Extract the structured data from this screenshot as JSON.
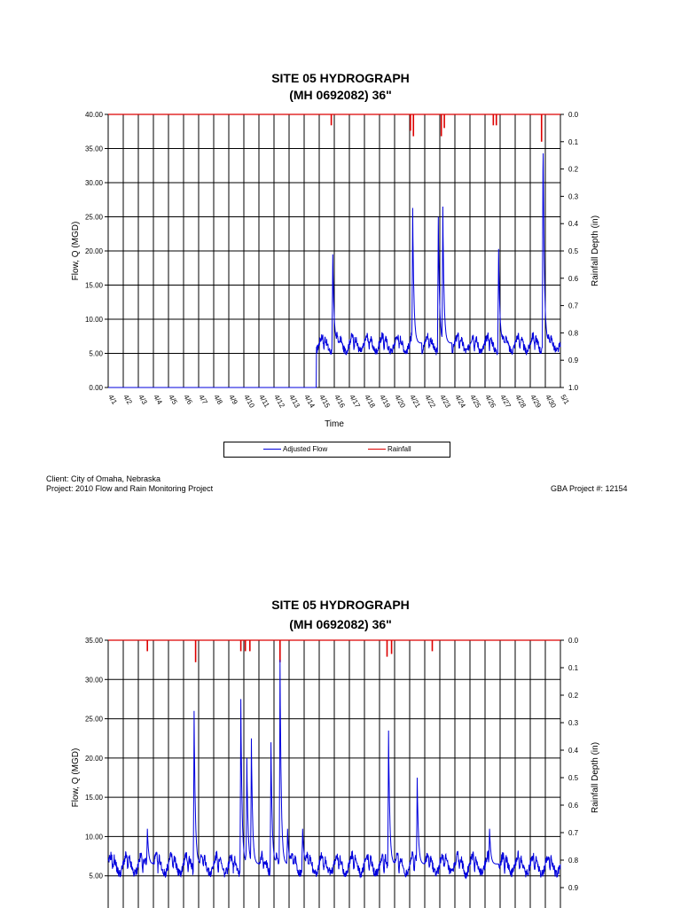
{
  "chart_data": [
    {
      "type": "line",
      "title_line1": "SITE 05 HYDROGRAPH",
      "title_line2": "(MH 0692082) 36\"",
      "xlabel": "Time",
      "ylabel": "Flow, Q (MGD)",
      "y2label": "Rainfall Depth (in)",
      "ylim": [
        0,
        40
      ],
      "y_ticks": [
        "40.00",
        "35.00",
        "30.00",
        "25.00",
        "20.00",
        "15.00",
        "10.00",
        "5.00",
        "0.00"
      ],
      "y2lim": [
        1.0,
        0.0
      ],
      "y2_ticks": [
        "0.0",
        "0.1",
        "0.2",
        "0.3",
        "0.4",
        "0.5",
        "0.6",
        "0.7",
        "0.8",
        "0.9",
        "1.0"
      ],
      "x_ticks": [
        "4/1",
        "4/2",
        "4/3",
        "4/4",
        "4/5",
        "4/6",
        "4/7",
        "4/8",
        "4/9",
        "4/10",
        "4/11",
        "4/12",
        "4/13",
        "4/14",
        "4/15",
        "4/16",
        "4/17",
        "4/18",
        "4/19",
        "4/20",
        "4/21",
        "4/22",
        "4/23",
        "4/24",
        "4/25",
        "4/26",
        "4/27",
        "4/28",
        "4/29",
        "4/30",
        "5/1"
      ],
      "grid": true,
      "legend_position": "bottom",
      "series": [
        {
          "name": "Adjusted Flow",
          "color": "#0000dd",
          "baseline": 0.0,
          "data_start_day": 13.8,
          "base_level": 6.5,
          "peaks": [
            {
              "day": 14.9,
              "value": 19.5
            },
            {
              "day": 20.2,
              "value": 26.3
            },
            {
              "day": 22.2,
              "value": 26.5
            },
            {
              "day": 21.9,
              "value": 25.0
            },
            {
              "day": 25.9,
              "value": 20.3
            },
            {
              "day": 28.85,
              "value": 38.0
            }
          ]
        },
        {
          "name": "Rainfall",
          "color": "#dd0000",
          "events": [
            {
              "day": 14.8,
              "depth": 0.04
            },
            {
              "day": 20.05,
              "depth": 0.06
            },
            {
              "day": 20.25,
              "depth": 0.08
            },
            {
              "day": 22.1,
              "depth": 0.08
            },
            {
              "day": 22.3,
              "depth": 0.05
            },
            {
              "day": 25.55,
              "depth": 0.04
            },
            {
              "day": 25.75,
              "depth": 0.04
            },
            {
              "day": 28.75,
              "depth": 0.1
            }
          ]
        }
      ]
    },
    {
      "type": "line",
      "title_line1": "SITE 05 HYDROGRAPH",
      "title_line2": "(MH 0692082) 36\"",
      "ylabel": "Flow, Q (MGD)",
      "y2label": "Rainfall Depth (in)",
      "ylim": [
        0,
        35
      ],
      "y_ticks": [
        "35.00",
        "30.00",
        "25.00",
        "20.00",
        "15.00",
        "10.00",
        "5.00"
      ],
      "y2lim": [
        1.0,
        0.0
      ],
      "y2_ticks": [
        "0.0",
        "0.1",
        "0.2",
        "0.3",
        "0.4",
        "0.5",
        "0.6",
        "0.7",
        "0.8",
        "0.9"
      ],
      "grid": true,
      "series": [
        {
          "name": "Adjusted Flow",
          "color": "#0000dd",
          "base_level": 6.5,
          "peaks": [
            {
              "day": 2.6,
              "value": 11.0
            },
            {
              "day": 5.7,
              "value": 26.0
            },
            {
              "day": 8.8,
              "value": 27.5
            },
            {
              "day": 9.2,
              "value": 20.0
            },
            {
              "day": 9.5,
              "value": 22.5
            },
            {
              "day": 10.8,
              "value": 22.0
            },
            {
              "day": 11.4,
              "value": 32.5
            },
            {
              "day": 11.9,
              "value": 11.0
            },
            {
              "day": 12.9,
              "value": 11.0
            },
            {
              "day": 18.6,
              "value": 23.5
            },
            {
              "day": 20.5,
              "value": 17.5
            },
            {
              "day": 25.3,
              "value": 11.0
            }
          ]
        },
        {
          "name": "Rainfall",
          "color": "#dd0000",
          "events": [
            {
              "day": 2.6,
              "depth": 0.04
            },
            {
              "day": 5.8,
              "depth": 0.08
            },
            {
              "day": 8.8,
              "depth": 0.04
            },
            {
              "day": 9.1,
              "depth": 0.04
            },
            {
              "day": 9.4,
              "depth": 0.04
            },
            {
              "day": 11.4,
              "depth": 0.08
            },
            {
              "day": 18.5,
              "depth": 0.06
            },
            {
              "day": 18.8,
              "depth": 0.05
            },
            {
              "day": 21.5,
              "depth": 0.04
            }
          ]
        }
      ]
    }
  ],
  "legend": {
    "flow_label": "Adjusted Flow",
    "rain_label": "Rainfall",
    "flow_color": "#0000dd",
    "rain_color": "#dd0000"
  },
  "footer": {
    "client": "Client: City of Omaha, Nebraska",
    "project": "Project: 2010 Flow and Rain Monitoring Project",
    "gba": "GBA Project #: 12154"
  }
}
